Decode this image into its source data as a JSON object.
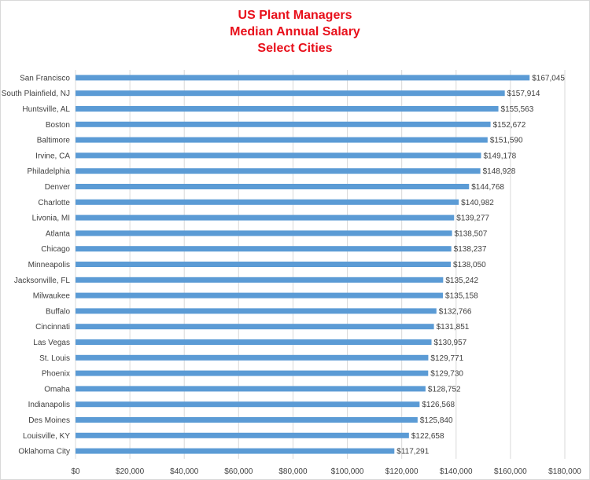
{
  "chart_data": {
    "type": "bar",
    "orientation": "horizontal",
    "title": [
      "US Plant Managers",
      "Median Annual Salary",
      "Select Cities"
    ],
    "xlabel": "",
    "ylabel": "",
    "xlim": [
      0,
      180000
    ],
    "xticks": [
      0,
      20000,
      40000,
      60000,
      80000,
      100000,
      120000,
      140000,
      160000,
      180000
    ],
    "xtick_labels": [
      "$0",
      "$20,000",
      "$40,000",
      "$60,000",
      "$80,000",
      "$100,000",
      "$120,000",
      "$140,000",
      "$160,000",
      "$180,000"
    ],
    "grid": "vertical",
    "bar_color": "#5b9bd5",
    "title_color": "#e8101b",
    "categories": [
      "San Francisco",
      "South Plainfield, NJ",
      "Huntsville, AL",
      "Boston",
      "Baltimore",
      "Irvine, CA",
      "Philadelphia",
      "Denver",
      "Charlotte",
      "Livonia, MI",
      "Atlanta",
      "Chicago",
      "Minneapolis",
      "Jacksonville, FL",
      "Milwaukee",
      "Buffalo",
      "Cincinnati",
      "Las Vegas",
      "St. Louis",
      "Phoenix",
      "Omaha",
      "Indianapolis",
      "Des Moines",
      "Louisville, KY",
      "Oklahoma City"
    ],
    "values": [
      167045,
      157914,
      155563,
      152672,
      151590,
      149178,
      148928,
      144768,
      140982,
      139277,
      138507,
      138237,
      138050,
      135242,
      135158,
      132766,
      131851,
      130957,
      129771,
      129730,
      128752,
      126568,
      125840,
      122658,
      117291
    ],
    "value_labels": [
      "$167,045",
      "$157,914",
      "$155,563",
      "$152,672",
      "$151,590",
      "$149,178",
      "$148,928",
      "$144,768",
      "$140,982",
      "$139,277",
      "$138,507",
      "$138,237",
      "$138,050",
      "$135,242",
      "$135,158",
      "$132,766",
      "$131,851",
      "$130,957",
      "$129,771",
      "$129,730",
      "$128,752",
      "$126,568",
      "$125,840",
      "$122,658",
      "$117,291"
    ]
  }
}
